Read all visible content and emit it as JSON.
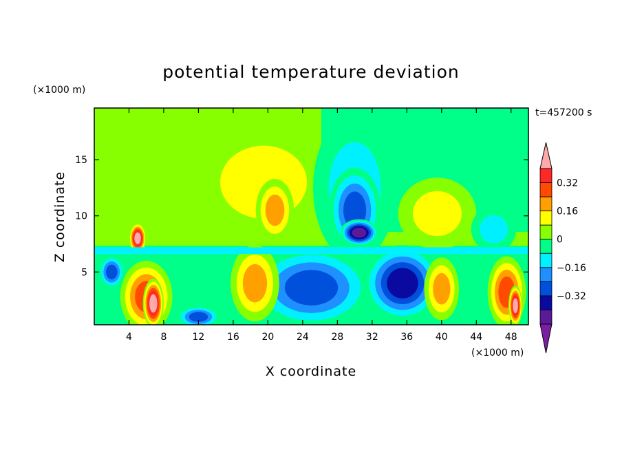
{
  "chart_data": {
    "type": "heatmap",
    "title": "potential temperature deviation",
    "xlabel": "X coordinate",
    "ylabel": "Z coordinate",
    "x_unit": "(×1000 m)",
    "y_unit": "(×1000 m)",
    "time_label": "t=457200 s",
    "xlim": [
      0,
      50
    ],
    "ylim": [
      0.3,
      19.6
    ],
    "x_ticks": [
      4,
      8,
      12,
      16,
      20,
      24,
      28,
      32,
      36,
      40,
      44,
      48
    ],
    "y_ticks": [
      5,
      10,
      15
    ],
    "colorbar": {
      "levels": [
        -0.48,
        -0.4,
        -0.32,
        -0.24,
        -0.16,
        -0.08,
        0,
        0.08,
        0.16,
        0.24,
        0.32,
        0.4
      ],
      "labeled_ticks": [
        "0.32",
        "0.16",
        "0",
        "−0.16",
        "−0.32"
      ],
      "labeled_values": [
        0.32,
        0.16,
        0,
        -0.16,
        -0.32
      ],
      "colors": [
        "#7a1fa2",
        "#5a1a9a",
        "#0a0aa0",
        "#0050dc",
        "#1e90ff",
        "#00f0ff",
        "#00ff88",
        "#88ff00",
        "#ffff00",
        "#ffa000",
        "#ff4a00",
        "#ff2828",
        "#ffaaaa"
      ]
    },
    "features": [
      {
        "x": 19.5,
        "z": 13.0,
        "w": 8.0,
        "h": 5.2,
        "v": 0.14
      },
      {
        "x": 20.8,
        "z": 10.5,
        "w": 2.2,
        "h": 2.8,
        "v": 0.2
      },
      {
        "x": 39.5,
        "z": 10.2,
        "w": 4.5,
        "h": 3.2,
        "v": 0.12
      },
      {
        "x": 8.5,
        "z": 10.0,
        "w": 5.5,
        "h": 2.6,
        "v": 0.07
      },
      {
        "x": 30.0,
        "z": 12.5,
        "w": 4.8,
        "h": 6.5,
        "v": -0.14
      },
      {
        "x": 30.0,
        "z": 10.5,
        "w": 3.0,
        "h": 3.8,
        "v": -0.3
      },
      {
        "x": 30.5,
        "z": 8.5,
        "w": 2.2,
        "h": 1.2,
        "v": -0.45
      },
      {
        "x": 46.0,
        "z": 8.8,
        "w": 2.6,
        "h": 2.0,
        "v": -0.12
      },
      {
        "x": 25.0,
        "z": 3.6,
        "w": 7.0,
        "h": 3.6,
        "v": -0.28
      },
      {
        "x": 35.5,
        "z": 4.0,
        "w": 4.5,
        "h": 3.4,
        "v": -0.36
      },
      {
        "x": 6.0,
        "z": 2.8,
        "w": 3.0,
        "h": 3.2,
        "v": 0.3
      },
      {
        "x": 6.8,
        "z": 2.2,
        "w": 1.2,
        "h": 2.2,
        "v": 0.45
      },
      {
        "x": 18.5,
        "z": 4.0,
        "w": 2.8,
        "h": 3.4,
        "v": 0.24
      },
      {
        "x": 40.0,
        "z": 3.5,
        "w": 2.0,
        "h": 2.8,
        "v": 0.24
      },
      {
        "x": 47.5,
        "z": 3.2,
        "w": 2.2,
        "h": 3.2,
        "v": 0.3
      },
      {
        "x": 48.5,
        "z": 2.0,
        "w": 0.8,
        "h": 1.8,
        "v": 0.45
      },
      {
        "x": 12.0,
        "z": 1.0,
        "w": 2.5,
        "h": 1.0,
        "v": -0.3
      },
      {
        "x": 2.0,
        "z": 5.0,
        "w": 1.5,
        "h": 1.5,
        "v": -0.3
      },
      {
        "x": 5.0,
        "z": 8.0,
        "w": 1.0,
        "h": 1.4,
        "v": 0.45
      }
    ]
  }
}
